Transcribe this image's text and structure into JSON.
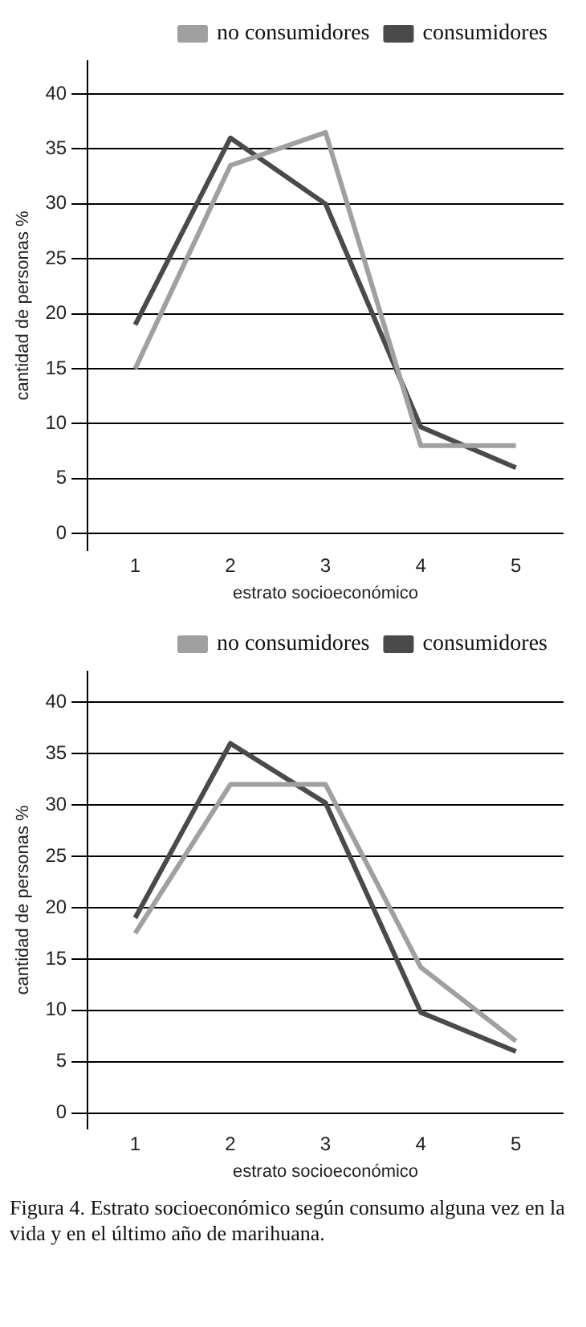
{
  "chart_data": [
    {
      "type": "line",
      "xlabel": "estrato socioeconómico",
      "ylabel": "cantidad de personas %",
      "categories": [
        "1",
        "2",
        "3",
        "4",
        "5"
      ],
      "series": [
        {
          "name": "no consumidores",
          "color": "#a0a0a0",
          "values": [
            15,
            33.5,
            36.5,
            8,
            8
          ]
        },
        {
          "name": "consumidores",
          "color": "#4a4a4a",
          "values": [
            19,
            36,
            30,
            9.7,
            6
          ]
        }
      ],
      "ylim": [
        -1.5,
        43
      ],
      "yticks": [
        0,
        5,
        10,
        15,
        20,
        25,
        30,
        35,
        40
      ],
      "grid": "y",
      "legend": "top right",
      "marker": "none",
      "line_style": "solid"
    },
    {
      "type": "line",
      "xlabel": "estrato socioeconómico",
      "ylabel": "cantidad de personas %",
      "categories": [
        "1",
        "2",
        "3",
        "4",
        "5"
      ],
      "series": [
        {
          "name": "no consumidores",
          "color": "#a0a0a0",
          "values": [
            17.5,
            32,
            32,
            14.2,
            7
          ]
        },
        {
          "name": "consumidores",
          "color": "#4a4a4a",
          "values": [
            19,
            36,
            30.2,
            9.8,
            6
          ]
        }
      ],
      "ylim": [
        -1.5,
        43
      ],
      "yticks": [
        0,
        5,
        10,
        15,
        20,
        25,
        30,
        35,
        40
      ],
      "grid": "y",
      "legend": "top right",
      "marker": "none",
      "line_style": "solid",
      "annotations": [
        "Figura 4. Estrato socioeconómico según consumo alguna vez en la vida y en el último año de marihuana."
      ]
    }
  ]
}
